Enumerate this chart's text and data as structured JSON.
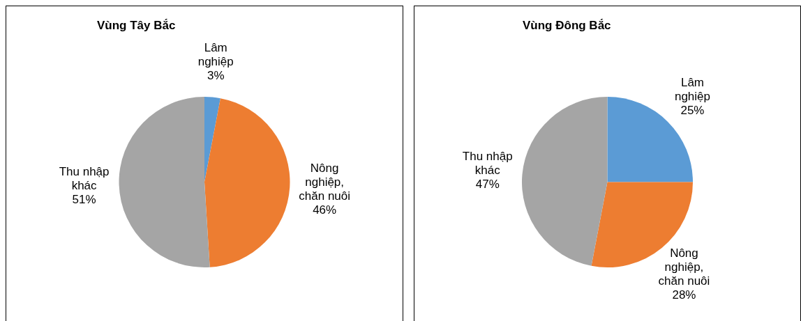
{
  "chart_data": [
    {
      "type": "pie",
      "title": "Vùng Tây Bắc",
      "categories": [
        "Lâm nghiệp",
        "Nông nghiệp, chăn nuôi",
        "Thu nhập khác"
      ],
      "values": [
        3,
        46,
        51
      ],
      "colors": [
        "#5b9bd5",
        "#ed7d31",
        "#a5a5a5"
      ],
      "value_labels": [
        "3%",
        "46%",
        "51%"
      ],
      "legend": false
    },
    {
      "type": "pie",
      "title": "Vùng Đông Bắc",
      "categories": [
        "Lâm nghiệp",
        "Nông nghiệp, chăn nuôi",
        "Thu nhập khác"
      ],
      "values": [
        25,
        28,
        47
      ],
      "colors": [
        "#5b9bd5",
        "#ed7d31",
        "#a5a5a5"
      ],
      "value_labels": [
        "25%",
        "28%",
        "47%"
      ],
      "legend": false
    }
  ]
}
